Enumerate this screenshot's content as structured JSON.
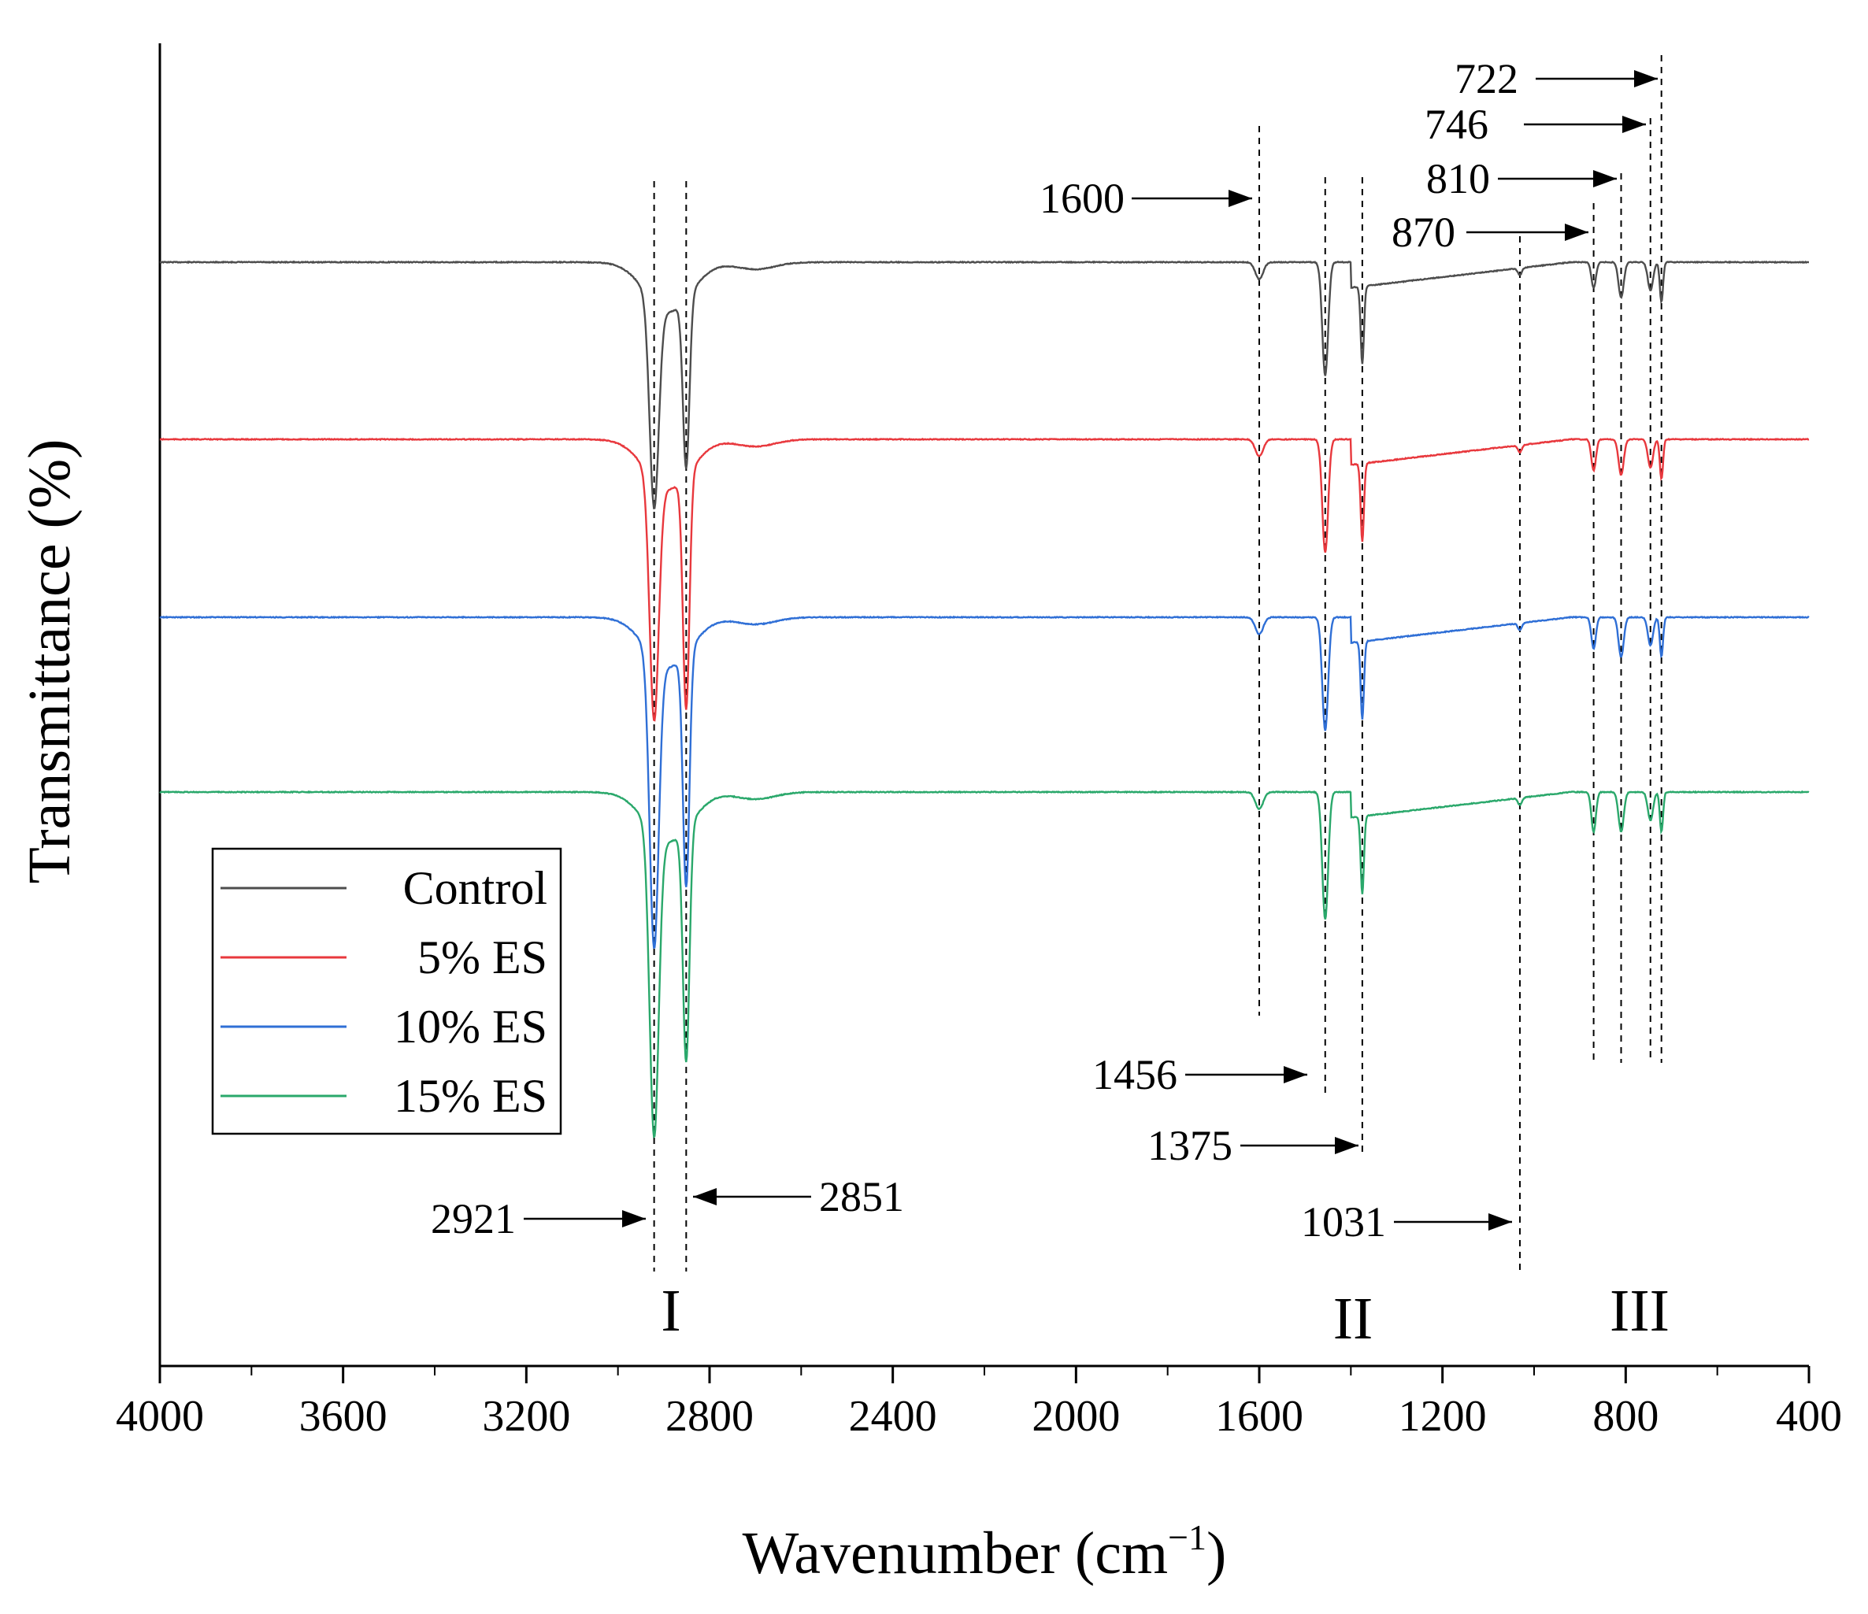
{
  "chart_data": {
    "type": "line",
    "title": "",
    "xlabel": "Wavenumber (cm",
    "xlabel_sup": "−1",
    "xlabel_close": ")",
    "ylabel": "Transmittance (%)",
    "xlim": [
      4000,
      400
    ],
    "x_ticks": [
      4000,
      3600,
      3200,
      2800,
      2400,
      2000,
      1600,
      1200,
      800,
      400
    ],
    "x_tick_labels": [
      "4000",
      "3600",
      "3200",
      "2800",
      "2400",
      "2000",
      "1600",
      "1200",
      "800",
      "400"
    ],
    "y_unit_note": "relative transmittance, curves vertically offset",
    "legend_position": "bottom-left",
    "series": [
      {
        "name": "Control",
        "color": "#4d4d4d",
        "offset": 0
      },
      {
        "name": "5% ES",
        "color": "#e8383d",
        "offset": 1
      },
      {
        "name": "10% ES",
        "color": "#2f6fd6",
        "offset": 2
      },
      {
        "name": "15% ES",
        "color": "#2aa86b",
        "offset": 3
      }
    ],
    "peaks": [
      {
        "x": 2921,
        "label": "2921",
        "depth": [
          1.45,
          1.7,
          2.05,
          2.15
        ]
      },
      {
        "x": 2851,
        "label": "2851",
        "depth": [
          1.2,
          1.65,
          1.65,
          1.65
        ]
      },
      {
        "x": 1600,
        "label": "1600",
        "depth": [
          0.12,
          0.12,
          0.12,
          0.12
        ]
      },
      {
        "x": 1456,
        "label": "1456",
        "depth": [
          0.8,
          0.8,
          0.8,
          0.9
        ]
      },
      {
        "x": 1375,
        "label": "1375",
        "depth": [
          0.55,
          0.55,
          0.55,
          0.55
        ]
      },
      {
        "x": 1031,
        "label": "1031",
        "depth": [
          0.05,
          0.05,
          0.05,
          0.05
        ]
      },
      {
        "x": 870,
        "label": "870",
        "depth": [
          0.18,
          0.22,
          0.22,
          0.28
        ]
      },
      {
        "x": 810,
        "label": "810",
        "depth": [
          0.25,
          0.25,
          0.28,
          0.28
        ]
      },
      {
        "x": 746,
        "label": "746",
        "depth": [
          0.2,
          0.2,
          0.2,
          0.2
        ]
      },
      {
        "x": 722,
        "label": "722",
        "depth": [
          0.28,
          0.28,
          0.28,
          0.28
        ]
      }
    ],
    "regions": [
      {
        "label": "I",
        "x": 2880
      },
      {
        "label": "II",
        "x": 1400
      },
      {
        "label": "III",
        "x": 770
      }
    ]
  }
}
